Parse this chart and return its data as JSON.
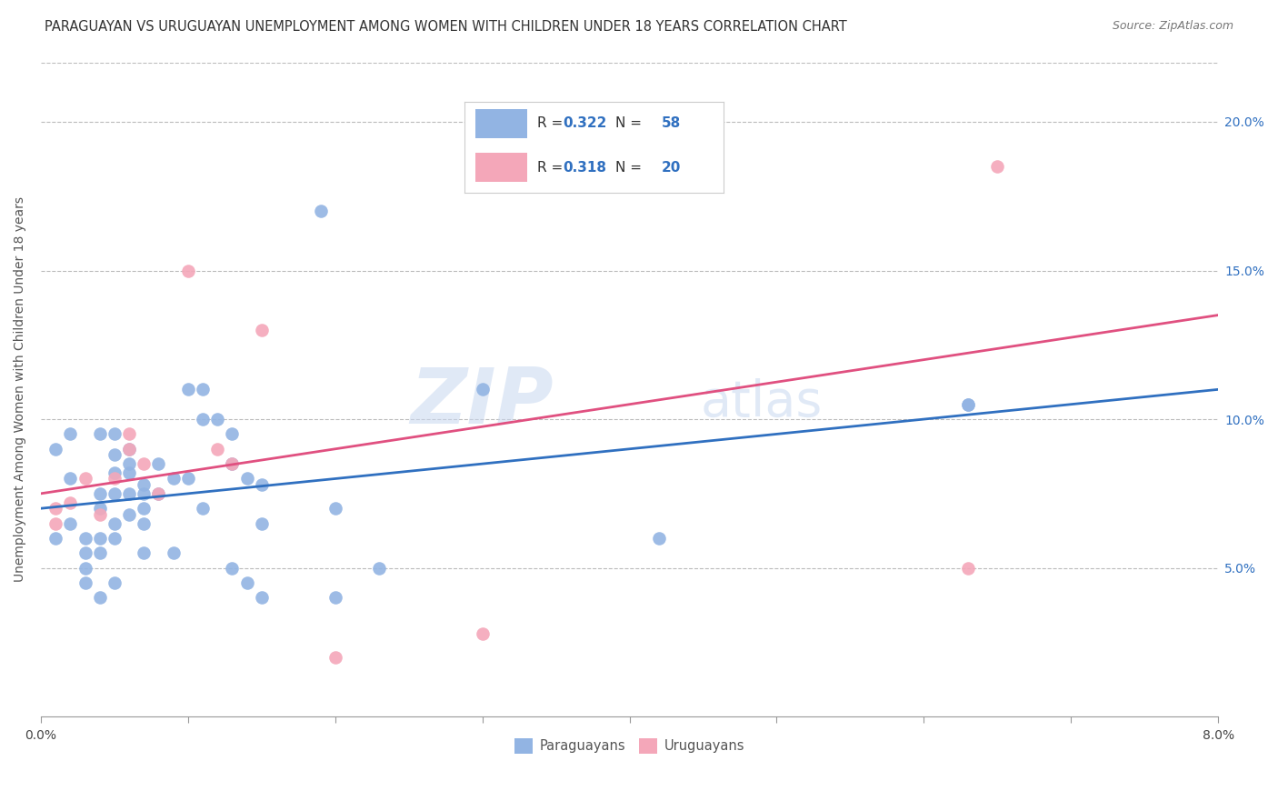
{
  "title": "PARAGUAYAN VS URUGUAYAN UNEMPLOYMENT AMONG WOMEN WITH CHILDREN UNDER 18 YEARS CORRELATION CHART",
  "source": "Source: ZipAtlas.com",
  "ylabel": "Unemployment Among Women with Children Under 18 years",
  "xlim": [
    0.0,
    0.08
  ],
  "ylim": [
    0.0,
    0.22
  ],
  "xticks": [
    0.0,
    0.01,
    0.02,
    0.03,
    0.04,
    0.05,
    0.06,
    0.07,
    0.08
  ],
  "xtick_labels_show": [
    "0.0%",
    "",
    "",
    "",
    "",
    "",
    "",
    "",
    "8.0%"
  ],
  "yticks": [
    0.05,
    0.1,
    0.15,
    0.2
  ],
  "ytick_labels": [
    "5.0%",
    "10.0%",
    "15.0%",
    "20.0%"
  ],
  "paraguayan_color": "#92b4e3",
  "uruguayan_color": "#f4a7b9",
  "blue_line_color": "#3070c0",
  "pink_line_color": "#e05080",
  "watermark_zip": "ZIP",
  "watermark_atlas": "atlas",
  "paraguayan_x": [
    0.001,
    0.001,
    0.002,
    0.002,
    0.002,
    0.003,
    0.003,
    0.003,
    0.003,
    0.004,
    0.004,
    0.004,
    0.004,
    0.004,
    0.004,
    0.005,
    0.005,
    0.005,
    0.005,
    0.005,
    0.005,
    0.005,
    0.006,
    0.006,
    0.006,
    0.006,
    0.006,
    0.007,
    0.007,
    0.007,
    0.007,
    0.007,
    0.008,
    0.008,
    0.009,
    0.009,
    0.01,
    0.01,
    0.011,
    0.011,
    0.011,
    0.012,
    0.013,
    0.013,
    0.013,
    0.014,
    0.014,
    0.015,
    0.015,
    0.015,
    0.019,
    0.02,
    0.02,
    0.023,
    0.03,
    0.042,
    0.063,
    0.063
  ],
  "paraguayan_y": [
    0.06,
    0.09,
    0.095,
    0.08,
    0.065,
    0.06,
    0.055,
    0.05,
    0.045,
    0.095,
    0.075,
    0.07,
    0.06,
    0.055,
    0.04,
    0.095,
    0.088,
    0.082,
    0.075,
    0.065,
    0.06,
    0.045,
    0.09,
    0.085,
    0.082,
    0.075,
    0.068,
    0.078,
    0.075,
    0.07,
    0.065,
    0.055,
    0.085,
    0.075,
    0.08,
    0.055,
    0.11,
    0.08,
    0.11,
    0.1,
    0.07,
    0.1,
    0.095,
    0.085,
    0.05,
    0.08,
    0.045,
    0.078,
    0.065,
    0.04,
    0.17,
    0.04,
    0.07,
    0.05,
    0.11,
    0.06,
    0.105,
    0.105
  ],
  "uruguayan_x": [
    0.001,
    0.001,
    0.002,
    0.003,
    0.004,
    0.005,
    0.006,
    0.006,
    0.007,
    0.008,
    0.01,
    0.012,
    0.013,
    0.015,
    0.02,
    0.03,
    0.042,
    0.042,
    0.063,
    0.065
  ],
  "uruguayan_y": [
    0.07,
    0.065,
    0.072,
    0.08,
    0.068,
    0.08,
    0.095,
    0.09,
    0.085,
    0.075,
    0.15,
    0.09,
    0.085,
    0.13,
    0.02,
    0.028,
    0.185,
    0.185,
    0.05,
    0.185
  ],
  "blue_line_x0": 0.0,
  "blue_line_y0": 0.07,
  "blue_line_x1": 0.08,
  "blue_line_y1": 0.11,
  "pink_line_x0": 0.0,
  "pink_line_y0": 0.075,
  "pink_line_x1": 0.08,
  "pink_line_y1": 0.135,
  "title_fontsize": 10.5,
  "source_fontsize": 9,
  "ylabel_fontsize": 10,
  "tick_fontsize": 10,
  "legend_fontsize": 12,
  "r1_value": "0.322",
  "n1_value": "58",
  "r2_value": "0.318",
  "n2_value": "20"
}
